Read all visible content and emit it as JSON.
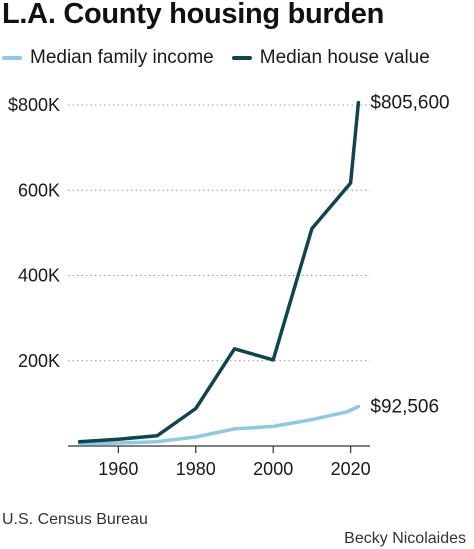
{
  "title": "L.A. County housing burden",
  "source": "U.S. Census Bureau",
  "credit": "Becky Nicolaides",
  "colors": {
    "income": "#8ec9e3",
    "house": "#0f4450",
    "grid": "#9a9a9a",
    "axis": "#333333"
  },
  "chart_data": {
    "type": "line",
    "title": "L.A. County housing burden",
    "xlabel": "",
    "ylabel": "",
    "xlim": [
      1947,
      2025
    ],
    "ylim": [
      0,
      800000
    ],
    "x_ticks": [
      1960,
      1980,
      2000,
      2020
    ],
    "x_tick_labels": [
      "1960",
      "1980",
      "2000",
      "2020"
    ],
    "y_ticks": [
      200000,
      400000,
      600000,
      800000
    ],
    "y_tick_labels": [
      "200K",
      "400K",
      "600K",
      "$800K"
    ],
    "grid": "horizontal dotted",
    "legend_position": "top",
    "series": [
      {
        "name": "Median family income",
        "color": "#8ec9e3",
        "x": [
          1950,
          1960,
          1970,
          1980,
          1990,
          2000,
          2010,
          2019,
          2022
        ],
        "y": [
          5000,
          7000,
          10000,
          21000,
          40000,
          46000,
          62000,
          80000,
          92506
        ],
        "end_label": "$92,506"
      },
      {
        "name": "Median house value",
        "color": "#0f4450",
        "x": [
          1950,
          1960,
          1970,
          1980,
          1990,
          2000,
          2010,
          2020,
          2022
        ],
        "y": [
          10000,
          16000,
          24000,
          88000,
          228000,
          202000,
          510000,
          617000,
          805600
        ],
        "end_label": "$805,600"
      }
    ]
  }
}
